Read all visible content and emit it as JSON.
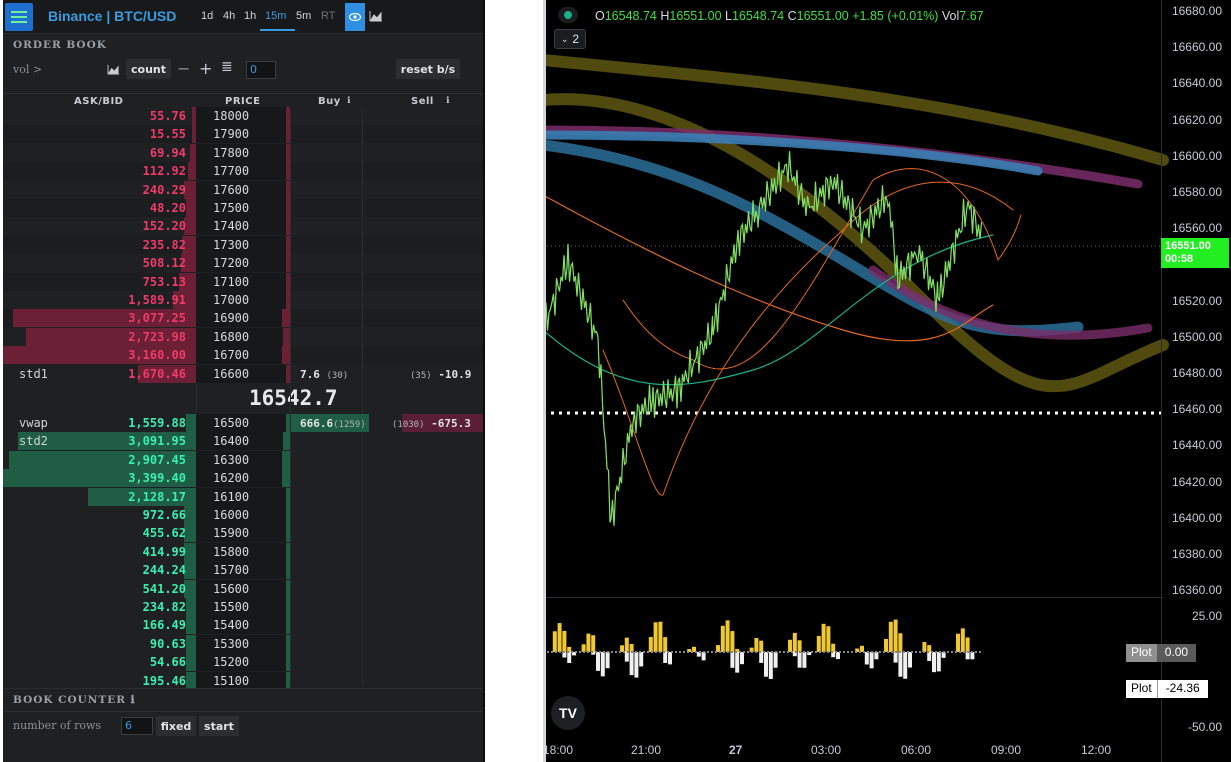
{
  "topbar": {
    "title": "Binance | BTC/USD",
    "timeframes": [
      "1d",
      "4h",
      "1h",
      "15m",
      "5m",
      "RT"
    ],
    "active_timeframe": "15m"
  },
  "order_book": {
    "section_title": "ORDER BOOK",
    "vol_label": "vol >",
    "count_label": "count",
    "count_value": "0",
    "reset_label": "reset b/s",
    "headers": {
      "askbid": "ASK/BID",
      "price": "PRICE",
      "buy": "Buy",
      "sell": "Sell"
    },
    "asks": [
      {
        "amount": "55.76",
        "price": "18000",
        "depth": 0.02
      },
      {
        "amount": "15.55",
        "price": "17900",
        "depth": 0.02
      },
      {
        "amount": "69.94",
        "price": "17800",
        "depth": 0.03
      },
      {
        "amount": "112.92",
        "price": "17700",
        "depth": 0.04
      },
      {
        "amount": "240.29",
        "price": "17600",
        "depth": 0.06
      },
      {
        "amount": "48.20",
        "price": "17500",
        "depth": 0.05
      },
      {
        "amount": "152.20",
        "price": "17400",
        "depth": 0.06
      },
      {
        "amount": "235.82",
        "price": "17300",
        "depth": 0.07
      },
      {
        "amount": "508.12",
        "price": "17200",
        "depth": 0.08
      },
      {
        "amount": "753.13",
        "price": "17100",
        "depth": 0.09
      },
      {
        "amount": "1,589.91",
        "price": "17000",
        "depth": 0.12
      },
      {
        "amount": "3,077.25",
        "price": "16900",
        "depth": 0.95
      },
      {
        "amount": "2,723.98",
        "price": "16800",
        "depth": 0.88
      },
      {
        "amount": "3,160.00",
        "price": "16700",
        "depth": 1.0
      },
      {
        "amount": "1,670.46",
        "price": "16600",
        "depth": 0.3,
        "label": "std1"
      }
    ],
    "mid_price": "16542.7",
    "bids": [
      {
        "amount": "1,559.88",
        "price": "16500",
        "depth": 0.05,
        "label": "vwap"
      },
      {
        "amount": "3,091.95",
        "price": "16400",
        "depth": 0.92,
        "label": "std2"
      },
      {
        "amount": "2,907.45",
        "price": "16300",
        "depth": 0.97
      },
      {
        "amount": "3,399.40",
        "price": "16200",
        "depth": 1.0
      },
      {
        "amount": "2,128.17",
        "price": "16100",
        "depth": 0.56
      },
      {
        "amount": "972.66",
        "price": "16000",
        "depth": 0.06
      },
      {
        "amount": "455.62",
        "price": "15900",
        "depth": 0.06
      },
      {
        "amount": "414.99",
        "price": "15800",
        "depth": 0.06
      },
      {
        "amount": "244.24",
        "price": "15700",
        "depth": 0.06
      },
      {
        "amount": "541.20",
        "price": "15600",
        "depth": 0.06
      },
      {
        "amount": "234.82",
        "price": "15500",
        "depth": 0.05
      },
      {
        "amount": "166.49",
        "price": "15400",
        "depth": 0.05
      },
      {
        "amount": "90.63",
        "price": "15300",
        "depth": 0.05
      },
      {
        "amount": "54.66",
        "price": "15200",
        "depth": 0.05
      },
      {
        "amount": "195.46",
        "price": "15100",
        "depth": 0.05
      }
    ],
    "std1_buy": {
      "value": "7.6",
      "count": "(30)"
    },
    "std1_sell": {
      "value": "-10.9",
      "count": "(35)"
    },
    "vwap_buy": {
      "value": "666.6",
      "count": "(1259)"
    },
    "vwap_sell": {
      "value": "-675.3",
      "count": "(1030)"
    }
  },
  "book_counter": {
    "section_title": "BOOK COUNTER",
    "rows_label": "number of rows",
    "rows_value": "6",
    "fixed_label": "fixed",
    "start_label": "start"
  },
  "chart": {
    "ohlc": {
      "o_k": "O",
      "o": "16548.74",
      "h_k": "H",
      "h": "16551.00",
      "l_k": "L",
      "l": "16548.74",
      "c_k": "C",
      "c": "16551.00",
      "chg": "+1.85 (+0.01%)",
      "vol_k": "Vol",
      "vol": "7.67"
    },
    "collapse_count": "2",
    "y_labels": [
      "16680.00",
      "16660.00",
      "16640.00",
      "16620.00",
      "16600.00",
      "16580.00",
      "16560.00",
      "16540.00",
      "16520.00",
      "16500.00",
      "16480.00",
      "16460.00",
      "16440.00",
      "16420.00",
      "16400.00",
      "16380.00",
      "16360.00"
    ],
    "last_price": "16551.00",
    "countdown": "00:58",
    "x_labels": [
      "18:00",
      "21:00",
      "27",
      "03:00",
      "06:00",
      "09:00",
      "12:00"
    ],
    "osc_labels": [
      "25.00",
      "-50.00"
    ],
    "plot1": {
      "key": "Plot",
      "value": "0.00"
    },
    "plot2": {
      "key": "Plot",
      "value": "-24.36"
    },
    "logo": "TV",
    "colors": {
      "up": "#40e040",
      "down": "#ff3a6a",
      "accent": "#3b9be0"
    }
  }
}
